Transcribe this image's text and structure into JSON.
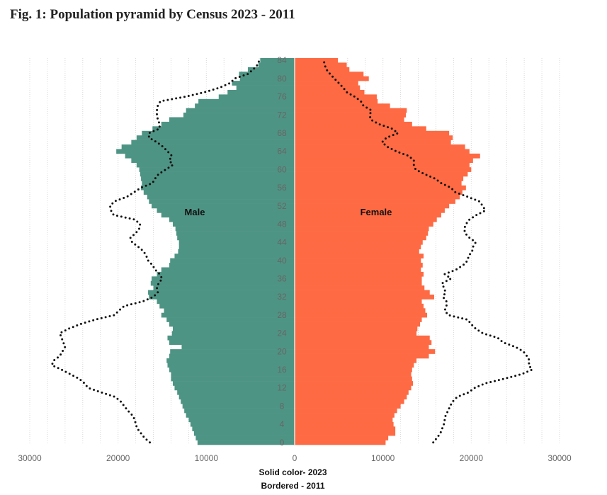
{
  "title": "Fig. 1: Population pyramid by Census 2023 - 2011",
  "notes": {
    "solid": "Solid color- 2023",
    "bordered": "Bordered - 2011"
  },
  "colors": {
    "male": "#4e9484",
    "female": "#fe6a43",
    "line": "#111111",
    "grid": "#d9d9d9"
  },
  "chart_data": {
    "type": "bar",
    "orientation": "horizontal",
    "ages": [
      0,
      1,
      2,
      3,
      4,
      5,
      6,
      7,
      8,
      9,
      10,
      11,
      12,
      13,
      14,
      15,
      16,
      17,
      18,
      19,
      20,
      21,
      22,
      23,
      24,
      25,
      26,
      27,
      28,
      29,
      30,
      31,
      32,
      33,
      34,
      35,
      36,
      37,
      38,
      39,
      40,
      41,
      42,
      43,
      44,
      45,
      46,
      47,
      48,
      49,
      50,
      51,
      52,
      53,
      54,
      55,
      56,
      57,
      58,
      59,
      60,
      61,
      62,
      63,
      64,
      65,
      66,
      67,
      68,
      69,
      70,
      71,
      72,
      73,
      74,
      75,
      76,
      77,
      78,
      79,
      80,
      81,
      82,
      83,
      84
    ],
    "male_2023": [
      11000,
      11200,
      11400,
      11600,
      11800,
      12000,
      12300,
      12500,
      12700,
      12900,
      13100,
      13300,
      13600,
      13800,
      14000,
      14000,
      14200,
      14400,
      14500,
      14200,
      14100,
      12800,
      14200,
      14400,
      13900,
      13800,
      14200,
      14500,
      15100,
      14800,
      15300,
      15600,
      16500,
      16600,
      16000,
      16300,
      16200,
      15600,
      15100,
      14200,
      14100,
      13600,
      13200,
      13100,
      13100,
      13300,
      13400,
      13500,
      13800,
      14200,
      15100,
      15600,
      16200,
      16500,
      16700,
      17100,
      17400,
      17300,
      17400,
      17500,
      17600,
      17900,
      18500,
      19200,
      20200,
      19600,
      18500,
      17900,
      17300,
      16100,
      15100,
      14200,
      12600,
      12300,
      11300,
      10900,
      8600,
      7600,
      6600,
      7100,
      6200,
      6300,
      5300,
      4100,
      3900
    ],
    "female_2023": [
      10300,
      10600,
      11400,
      11400,
      11200,
      11100,
      11300,
      11600,
      12000,
      12400,
      12700,
      12900,
      13200,
      13400,
      13300,
      13200,
      13300,
      13500,
      13800,
      15200,
      15900,
      15200,
      15500,
      15300,
      13800,
      13900,
      14200,
      14400,
      15000,
      14800,
      14600,
      14400,
      15800,
      15300,
      14700,
      14400,
      14400,
      14600,
      14300,
      14500,
      14300,
      14600,
      14100,
      14300,
      14500,
      14900,
      15100,
      15200,
      15700,
      16100,
      16600,
      17000,
      17500,
      18200,
      18700,
      19000,
      19400,
      18900,
      19100,
      19600,
      20000,
      19800,
      20200,
      21000,
      19800,
      19300,
      17700,
      17900,
      17500,
      14900,
      13300,
      12400,
      12600,
      12700,
      10800,
      9400,
      9300,
      7900,
      7400,
      7200,
      8400,
      7800,
      6200,
      5900,
      4900
    ],
    "male_2011": [
      16400,
      17000,
      17400,
      17800,
      18000,
      18100,
      18400,
      18900,
      19300,
      19700,
      20300,
      21900,
      23400,
      23800,
      24400,
      25400,
      26400,
      27500,
      27300,
      26600,
      26300,
      26000,
      26200,
      26400,
      26600,
      25600,
      24300,
      22600,
      20400,
      19900,
      19300,
      17200,
      16000,
      15500,
      15600,
      15400,
      15000,
      15300,
      15800,
      16100,
      16600,
      16800,
      17100,
      17700,
      18400,
      18600,
      18000,
      17600,
      17500,
      18100,
      20500,
      20800,
      20900,
      20400,
      19000,
      18200,
      17400,
      16100,
      15800,
      15400,
      14600,
      13800,
      14200,
      13900,
      14400,
      14900,
      15600,
      16500,
      16500,
      15300,
      15300,
      15500,
      15600,
      15600,
      15500,
      15200,
      12400,
      10200,
      8500,
      7300,
      6800,
      5300,
      4700,
      4200,
      4000
    ],
    "female_2011": [
      15700,
      16100,
      16500,
      16700,
      16900,
      17000,
      17100,
      17400,
      17600,
      17900,
      18400,
      19700,
      20400,
      21600,
      23700,
      25700,
      26900,
      26500,
      26600,
      26300,
      25900,
      25000,
      23600,
      23000,
      21300,
      20500,
      20000,
      19600,
      17400,
      17000,
      17200,
      17200,
      16800,
      17100,
      16900,
      16700,
      17700,
      17000,
      18300,
      19100,
      19600,
      19700,
      20100,
      20200,
      20500,
      19800,
      19300,
      19200,
      19400,
      19800,
      20600,
      21600,
      21300,
      20900,
      19600,
      18200,
      17700,
      16600,
      15900,
      14700,
      13700,
      13500,
      13500,
      12900,
      11500,
      10500,
      9900,
      10400,
      11700,
      11000,
      9500,
      8600,
      8500,
      8700,
      7800,
      7500,
      6800,
      5900,
      5500,
      5000,
      4500,
      4000,
      3600,
      3400,
      3300
    ],
    "age_ticks": [
      0,
      4,
      8,
      12,
      16,
      20,
      24,
      28,
      32,
      36,
      40,
      44,
      48,
      52,
      56,
      60,
      64,
      68,
      72,
      76,
      80,
      84
    ],
    "x_ticks": [
      "30000",
      "20000",
      "10000",
      "0",
      "10000",
      "20000",
      "30000"
    ],
    "xlim": [
      -30000,
      30000
    ],
    "series": [
      {
        "name": "Male"
      },
      {
        "name": "Female"
      }
    ]
  }
}
